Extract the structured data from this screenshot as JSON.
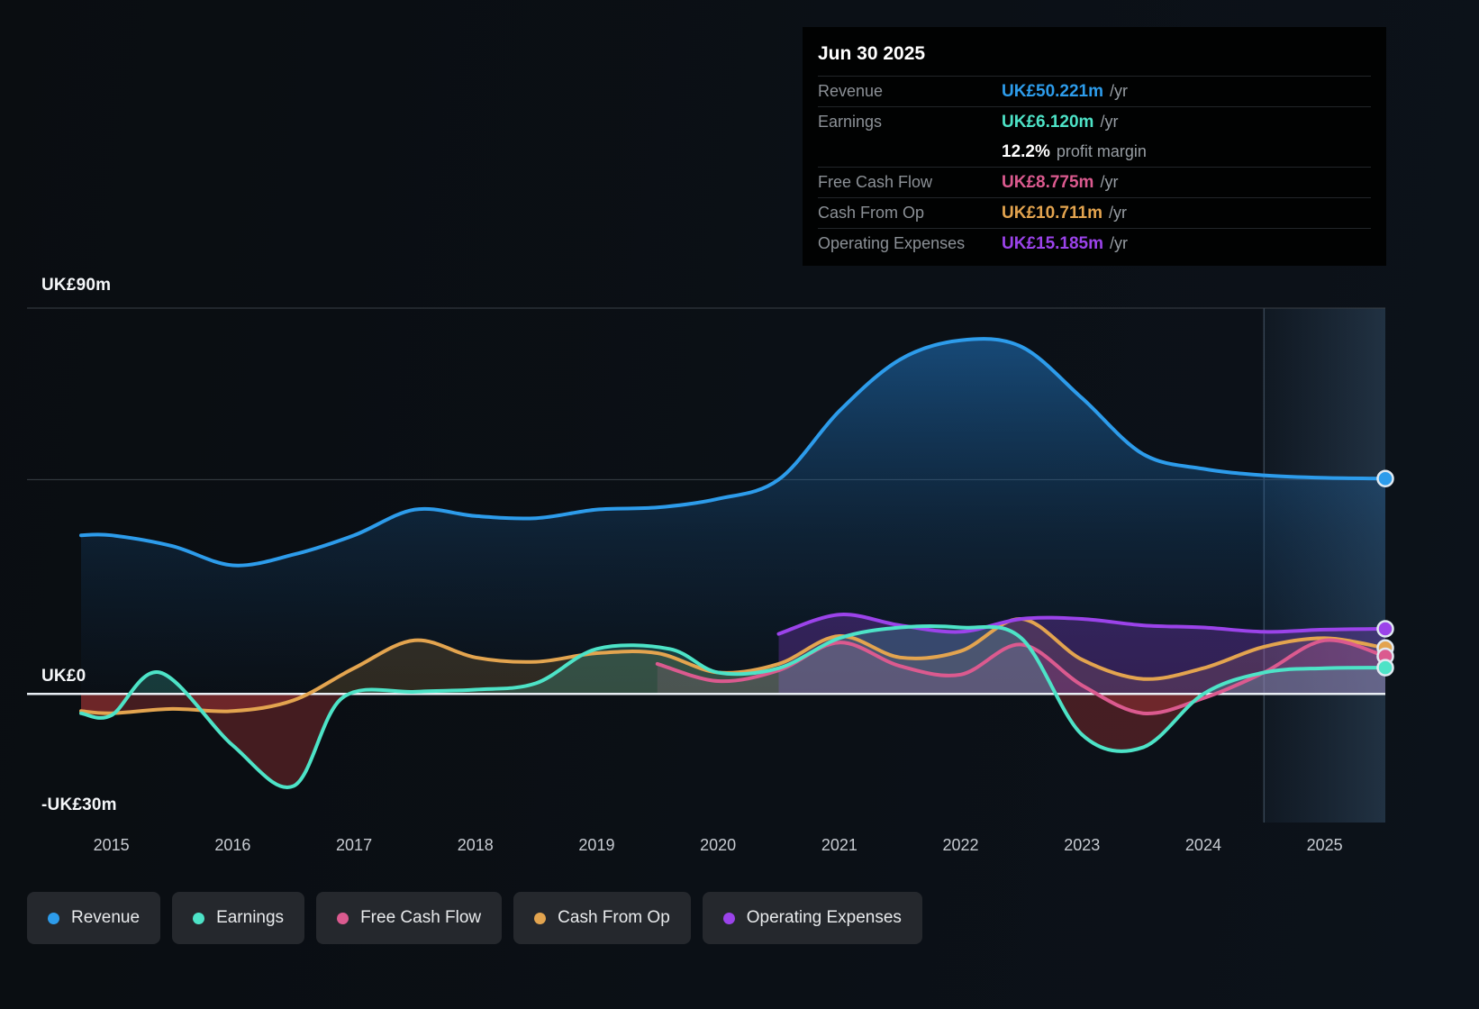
{
  "tooltip": {
    "date": "Jun 30 2025",
    "rows": [
      {
        "label": "Revenue",
        "value": "UK£50.221m",
        "suffix": "/yr",
        "color": "#2D9CEB",
        "divider": true
      },
      {
        "label": "Earnings",
        "value": "UK£6.120m",
        "suffix": "/yr",
        "color": "#4DE3C7",
        "divider": true
      },
      {
        "label": "",
        "value": "12.2%",
        "suffix": "profit margin",
        "color": "#FFFFFF",
        "divider": false
      },
      {
        "label": "Free Cash Flow",
        "value": "UK£8.775m",
        "suffix": "/yr",
        "color": "#DB5A8F",
        "divider": true
      },
      {
        "label": "Cash From Op",
        "value": "UK£10.711m",
        "suffix": "/yr",
        "color": "#E3A44F",
        "divider": true
      },
      {
        "label": "Operating Expenses",
        "value": "UK£15.185m",
        "suffix": "/yr",
        "color": "#9B43EA",
        "divider": true
      }
    ]
  },
  "axis": {
    "y_top_label": "UK£90m",
    "y_zero_label": "UK£0",
    "y_bottom_label": "-UK£30m"
  },
  "legend": {
    "items": [
      {
        "label": "Revenue",
        "color": "#2D9CEB"
      },
      {
        "label": "Earnings",
        "color": "#4DE3C7"
      },
      {
        "label": "Free Cash Flow",
        "color": "#DB5A8F"
      },
      {
        "label": "Cash From Op",
        "color": "#E3A44F"
      },
      {
        "label": "Operating Expenses",
        "color": "#9B43EA"
      }
    ]
  },
  "chart_data": {
    "type": "line",
    "title": "",
    "xlabel": "",
    "ylabel": "",
    "unit": "UK£ millions per year",
    "xlim": [
      2014.75,
      2025.5
    ],
    "ylim": [
      -30,
      90
    ],
    "y_gridlines": [
      90,
      50
    ],
    "x_tick_values": [
      2015,
      2016,
      2017,
      2018,
      2019,
      2020,
      2021,
      2022,
      2023,
      2024,
      2025
    ],
    "x_tick_labels": [
      "2015",
      "2016",
      "2017",
      "2018",
      "2019",
      "2020",
      "2021",
      "2022",
      "2023",
      "2024",
      "2025"
    ],
    "past_future_divider_x": 2024.5,
    "series": [
      {
        "name": "Revenue",
        "color": "#2D9CEB",
        "x": [
          2014.75,
          2015,
          2015.5,
          2016,
          2016.5,
          2017,
          2017.5,
          2018,
          2018.5,
          2019,
          2019.5,
          2020,
          2020.5,
          2021,
          2021.5,
          2022,
          2022.5,
          2023,
          2023.5,
          2024,
          2024.5,
          2025,
          2025.5
        ],
        "values": [
          37,
          37,
          34.5,
          30,
          32.5,
          37,
          43,
          41.5,
          41,
          43,
          43.5,
          45.5,
          50,
          66,
          78,
          82.5,
          81,
          69,
          56,
          52.5,
          51,
          50.4,
          50.221
        ]
      },
      {
        "name": "Cash From Op",
        "color": "#E3A44F",
        "x": [
          2014.75,
          2015,
          2015.5,
          2016,
          2016.5,
          2017,
          2017.5,
          2018,
          2018.5,
          2019,
          2019.5,
          2020,
          2020.5,
          2021,
          2021.5,
          2022,
          2022.5,
          2023,
          2023.5,
          2024,
          2024.5,
          2025,
          2025.5
        ],
        "values": [
          -4,
          -4.5,
          -3.5,
          -4,
          -1.5,
          6,
          12.5,
          8.5,
          7.5,
          9.5,
          9.5,
          5,
          7,
          13.5,
          8.5,
          10,
          17.5,
          8,
          3.5,
          6,
          11,
          13,
          10.711
        ]
      },
      {
        "name": "Free Cash Flow",
        "color": "#DB5A8F",
        "x": [
          2019.5,
          2020,
          2020.5,
          2021,
          2021.5,
          2022,
          2022.5,
          2023,
          2023.5,
          2024,
          2024.5,
          2025,
          2025.5
        ],
        "values": [
          7,
          3,
          5.5,
          12,
          6.5,
          4.5,
          11.5,
          2,
          -4.5,
          -1,
          5,
          12.5,
          8.775
        ]
      },
      {
        "name": "Operating Expenses",
        "color": "#9B43EA",
        "x": [
          2020.5,
          2021,
          2021.5,
          2022,
          2022.5,
          2023,
          2023.5,
          2024,
          2024.5,
          2025,
          2025.5
        ],
        "values": [
          14,
          18.5,
          16,
          14.5,
          17.5,
          17.5,
          16,
          15.5,
          14.5,
          15,
          15.185
        ]
      },
      {
        "name": "Earnings",
        "color": "#4DE3C7",
        "x": [
          2014.75,
          2015,
          2015.4,
          2016,
          2016.5,
          2016.9,
          2017.5,
          2018,
          2018.5,
          2019,
          2019.6,
          2020,
          2020.5,
          2021,
          2021.5,
          2022,
          2022.5,
          2023,
          2023.5,
          2024,
          2024.5,
          2025,
          2025.5
        ],
        "values": [
          -4.5,
          -5,
          5,
          -12,
          -21.5,
          -1,
          0.5,
          1,
          2.5,
          10.5,
          10.5,
          5,
          6,
          13,
          15.5,
          15.5,
          13,
          -9.5,
          -12.5,
          0,
          5,
          6,
          6.12
        ]
      }
    ]
  }
}
